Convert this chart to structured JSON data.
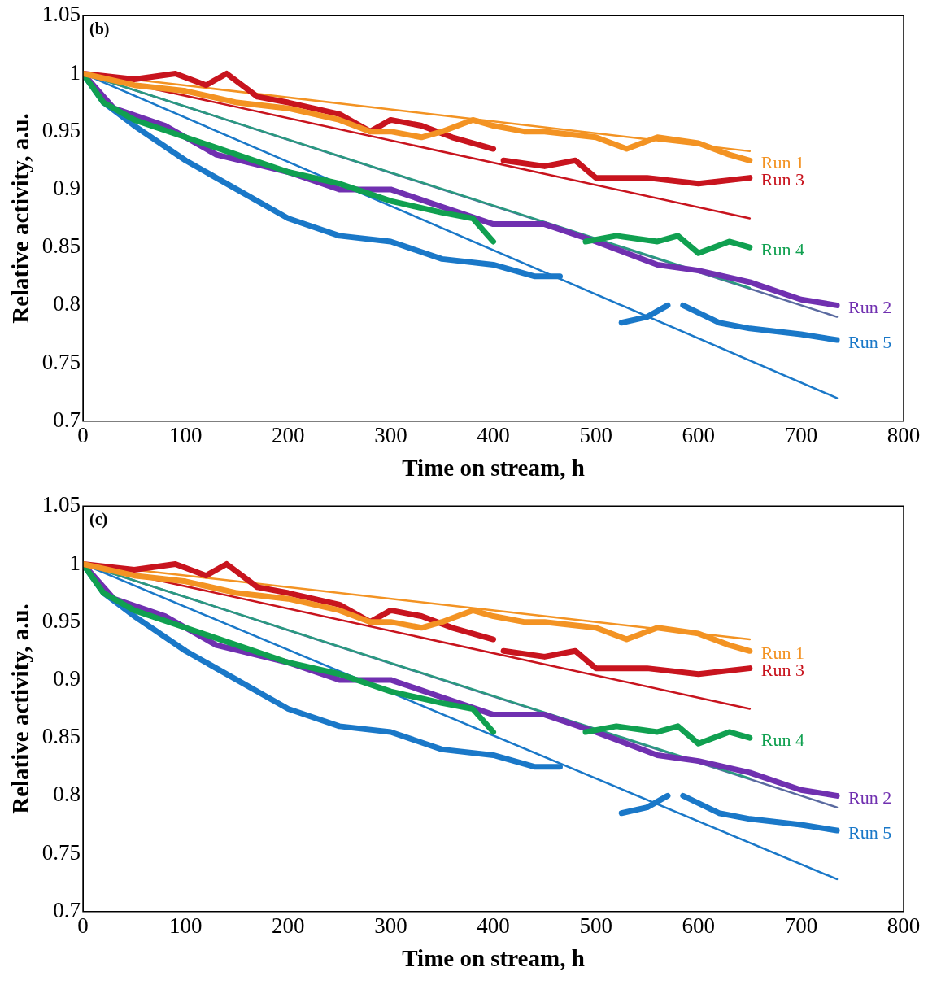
{
  "chart_data": [
    {
      "type": "line",
      "annotations": [
        "(b)"
      ],
      "xlabel": "Time on stream, h",
      "ylabel": "Relative activity, a.u.",
      "xlim": [
        0,
        800
      ],
      "xticks": [
        0,
        100,
        200,
        300,
        400,
        500,
        600,
        700,
        800
      ],
      "ylim": [
        0.7,
        1.05
      ],
      "yticks": [
        0.7,
        0.75,
        0.8,
        0.85,
        0.9,
        0.95,
        1,
        1.05
      ],
      "grid": false,
      "legend": false,
      "marker": "none",
      "line_style": "solid",
      "series": [
        {
          "type": "line",
          "name": "Run 1",
          "color": "#f39323",
          "x": [
            0,
            50,
            100,
            150,
            200,
            250,
            280,
            300,
            330,
            350,
            380,
            400,
            430,
            450,
            500,
            530,
            560,
            600,
            630,
            650
          ],
          "values": [
            1,
            0.99,
            0.985,
            0.975,
            0.97,
            0.96,
            0.95,
            0.95,
            0.945,
            0.95,
            0.96,
            0.955,
            0.95,
            0.95,
            0.945,
            0.935,
            0.945,
            0.94,
            0.93,
            0.925
          ]
        },
        {
          "type": "line",
          "name": "Run 3",
          "color": "#c8141e",
          "x": [
            0,
            50,
            90,
            120,
            140,
            170,
            200,
            250,
            280,
            300,
            330,
            360,
            400,
            405,
            410,
            450,
            480,
            500,
            550,
            600,
            650
          ],
          "values": [
            1,
            0.995,
            1,
            0.99,
            1,
            0.98,
            0.975,
            0.965,
            0.95,
            0.96,
            0.955,
            0.945,
            0.935,
            null,
            0.925,
            0.92,
            0.925,
            0.91,
            0.91,
            0.905,
            0.91
          ]
        },
        {
          "type": "line",
          "name": "Run 4",
          "color": "#10a050",
          "x": [
            0,
            20,
            50,
            100,
            150,
            200,
            250,
            300,
            350,
            380,
            400,
            450,
            490,
            520,
            560,
            580,
            600,
            630,
            650
          ],
          "values": [
            1,
            0.975,
            0.96,
            0.945,
            0.93,
            0.915,
            0.905,
            0.89,
            0.88,
            0.875,
            0.855,
            null,
            0.855,
            0.86,
            0.855,
            0.86,
            0.845,
            0.855,
            0.85
          ]
        },
        {
          "type": "line",
          "name": "Run 2",
          "color": "#7030b0",
          "x": [
            0,
            30,
            80,
            130,
            200,
            250,
            300,
            350,
            400,
            450,
            500,
            530,
            560,
            600,
            650,
            700,
            735
          ],
          "values": [
            1,
            0.97,
            0.955,
            0.93,
            0.915,
            0.9,
            0.9,
            0.885,
            0.87,
            0.87,
            0.855,
            0.845,
            0.835,
            0.83,
            0.82,
            0.805,
            0.8
          ]
        },
        {
          "type": "line",
          "name": "Run 5",
          "color": "#1a78c8",
          "x": [
            0,
            20,
            50,
            100,
            150,
            200,
            250,
            300,
            350,
            400,
            440,
            465,
            495,
            525,
            550,
            570,
            578,
            585,
            620,
            650,
            700,
            735
          ],
          "values": [
            1,
            0.975,
            0.955,
            0.925,
            0.9,
            0.875,
            0.86,
            0.855,
            0.84,
            0.835,
            0.825,
            0.825,
            null,
            0.785,
            0.79,
            0.8,
            null,
            0.8,
            0.785,
            0.78,
            0.775,
            0.77
          ]
        },
        {
          "type": "line",
          "color": "#f39323",
          "x": [
            0,
            650
          ],
          "values": [
            1,
            0.933
          ]
        },
        {
          "type": "line",
          "color": "#c8141e",
          "x": [
            0,
            650
          ],
          "values": [
            1,
            0.875
          ]
        },
        {
          "type": "line",
          "color": "#2a9a80",
          "x": [
            0,
            650
          ],
          "values": [
            1,
            0.815
          ]
        },
        {
          "type": "line",
          "color": "#5a6aa0",
          "x": [
            0,
            735
          ],
          "values": [
            1,
            0.79
          ]
        },
        {
          "type": "line",
          "color": "#1a78c8",
          "x": [
            0,
            735
          ],
          "values": [
            1,
            0.72
          ]
        }
      ]
    },
    {
      "type": "line",
      "annotations": [
        "(c)"
      ],
      "xlabel": "Time on stream, h",
      "ylabel": "Relative activity, a.u.",
      "xlim": [
        0,
        800
      ],
      "xticks": [
        0,
        100,
        200,
        300,
        400,
        500,
        600,
        700,
        800
      ],
      "ylim": [
        0.7,
        1.05
      ],
      "yticks": [
        0.7,
        0.75,
        0.8,
        0.85,
        0.9,
        0.95,
        1,
        1.05
      ],
      "grid": false,
      "legend": false,
      "marker": "none",
      "line_style": "solid",
      "series": [
        {
          "type": "line",
          "name": "Run 1",
          "color": "#f39323",
          "x": [
            0,
            50,
            100,
            150,
            200,
            250,
            280,
            300,
            330,
            350,
            380,
            400,
            430,
            450,
            500,
            530,
            560,
            600,
            630,
            650
          ],
          "values": [
            1,
            0.99,
            0.985,
            0.975,
            0.97,
            0.96,
            0.95,
            0.95,
            0.945,
            0.95,
            0.96,
            0.955,
            0.95,
            0.95,
            0.945,
            0.935,
            0.945,
            0.94,
            0.93,
            0.925
          ]
        },
        {
          "type": "line",
          "name": "Run 3",
          "color": "#c8141e",
          "x": [
            0,
            50,
            90,
            120,
            140,
            170,
            200,
            250,
            280,
            300,
            330,
            360,
            400,
            405,
            410,
            450,
            480,
            500,
            550,
            600,
            650
          ],
          "values": [
            1,
            0.995,
            1,
            0.99,
            1,
            0.98,
            0.975,
            0.965,
            0.95,
            0.96,
            0.955,
            0.945,
            0.935,
            null,
            0.925,
            0.92,
            0.925,
            0.91,
            0.91,
            0.905,
            0.91
          ]
        },
        {
          "type": "line",
          "name": "Run 4",
          "color": "#10a050",
          "x": [
            0,
            20,
            50,
            100,
            150,
            200,
            250,
            300,
            350,
            380,
            400,
            450,
            490,
            520,
            560,
            580,
            600,
            630,
            650
          ],
          "values": [
            1,
            0.975,
            0.96,
            0.945,
            0.93,
            0.915,
            0.905,
            0.89,
            0.88,
            0.875,
            0.855,
            null,
            0.855,
            0.86,
            0.855,
            0.86,
            0.845,
            0.855,
            0.85
          ]
        },
        {
          "type": "line",
          "name": "Run 2",
          "color": "#7030b0",
          "x": [
            0,
            30,
            80,
            130,
            200,
            250,
            300,
            350,
            400,
            450,
            500,
            530,
            560,
            600,
            650,
            700,
            735
          ],
          "values": [
            1,
            0.97,
            0.955,
            0.93,
            0.915,
            0.9,
            0.9,
            0.885,
            0.87,
            0.87,
            0.855,
            0.845,
            0.835,
            0.83,
            0.82,
            0.805,
            0.8
          ]
        },
        {
          "type": "line",
          "name": "Run 5",
          "color": "#1a78c8",
          "x": [
            0,
            20,
            50,
            100,
            150,
            200,
            250,
            300,
            350,
            400,
            440,
            465,
            495,
            525,
            550,
            570,
            578,
            585,
            620,
            650,
            700,
            735
          ],
          "values": [
            1,
            0.975,
            0.955,
            0.925,
            0.9,
            0.875,
            0.86,
            0.855,
            0.84,
            0.835,
            0.825,
            0.825,
            null,
            0.785,
            0.79,
            0.8,
            null,
            0.8,
            0.785,
            0.78,
            0.775,
            0.77
          ]
        },
        {
          "type": "line",
          "color": "#f39323",
          "x": [
            0,
            650
          ],
          "values": [
            1,
            0.935
          ]
        },
        {
          "type": "line",
          "color": "#c8141e",
          "x": [
            0,
            650
          ],
          "values": [
            1,
            0.875
          ]
        },
        {
          "type": "line",
          "color": "#2a9a80",
          "x": [
            0,
            650
          ],
          "values": [
            1,
            0.815
          ]
        },
        {
          "type": "line",
          "color": "#5a6aa0",
          "x": [
            0,
            735
          ],
          "values": [
            1,
            0.79
          ]
        },
        {
          "type": "line",
          "color": "#1a78c8",
          "x": [
            0,
            735
          ],
          "values": [
            1,
            0.728
          ]
        }
      ]
    }
  ]
}
